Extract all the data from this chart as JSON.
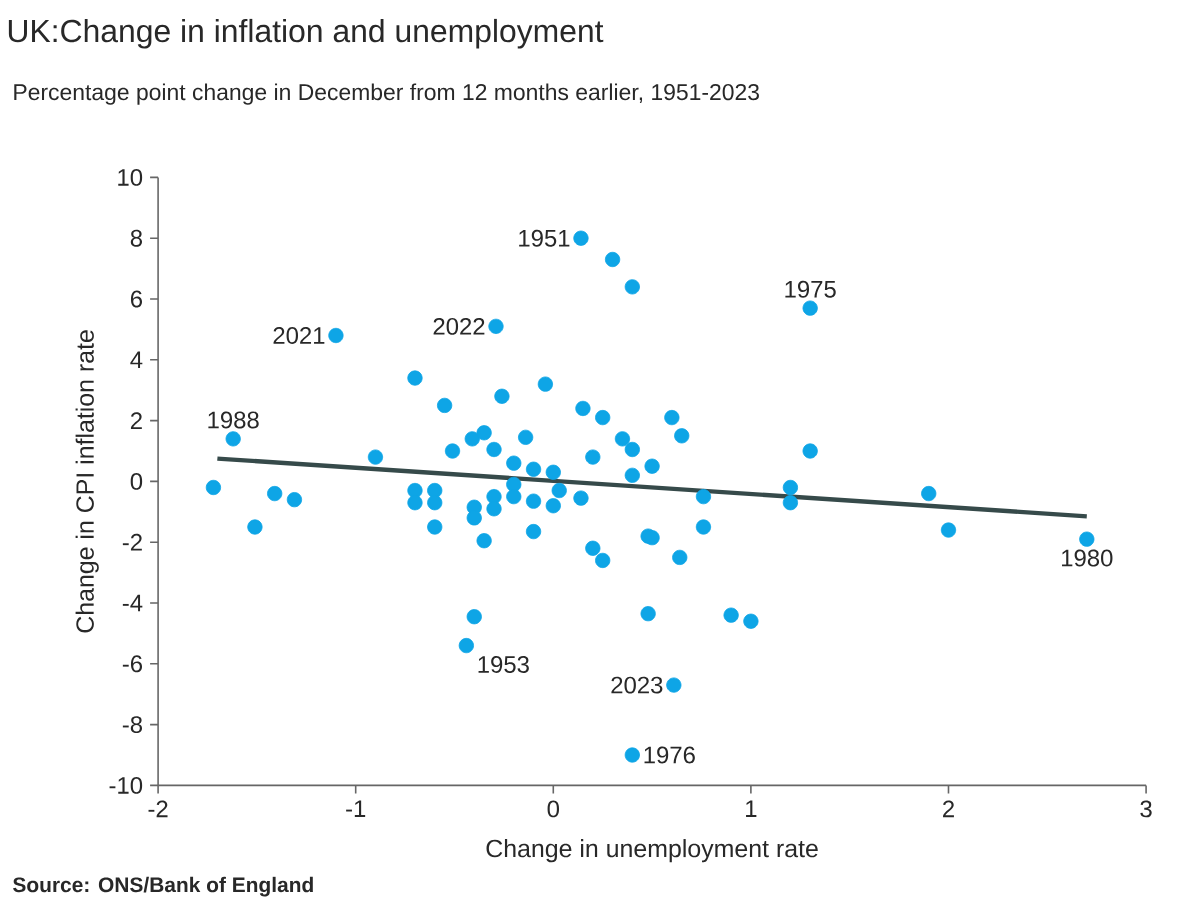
{
  "chart_data": {
    "type": "scatter",
    "title": "UK:Change in inflation and unemployment",
    "subtitle": "Percentage  point change in December from 12 months earlier, 1951-2023",
    "xlabel": "Change in unemployment rate",
    "ylabel": "Change in CPI inflation rate",
    "xlim": [
      -2,
      3
    ],
    "xticks": [
      -2,
      -1,
      0,
      1,
      2,
      3
    ],
    "ylim": [
      -10,
      10
    ],
    "yticks": [
      -10,
      -8,
      -6,
      -4,
      -2,
      0,
      2,
      4,
      6,
      8,
      10
    ],
    "series": [
      {
        "type": "scatter",
        "color": "#0ea5e6",
        "marker": "circle",
        "x": [
          -1.72,
          -1.62,
          -1.51,
          -1.41,
          -1.31,
          -1.1,
          -0.9,
          -0.7,
          -0.7,
          -0.7,
          -0.6,
          -0.6,
          -0.6,
          -0.55,
          -0.51,
          -0.44,
          -0.41,
          -0.4,
          -0.4,
          -0.4,
          -0.35,
          -0.35,
          -0.3,
          -0.3,
          -0.3,
          -0.29,
          -0.26,
          -0.2,
          -0.2,
          -0.2,
          -0.14,
          -0.1,
          -0.1,
          -0.1,
          -0.04,
          0,
          0,
          0.03,
          0.14,
          0.14,
          0.15,
          0.2,
          0.2,
          0.25,
          0.25,
          0.3,
          0.35,
          0.4,
          0.4,
          0.4,
          0.4,
          0.48,
          0.48,
          0.5,
          0.5,
          0.6,
          0.61,
          0.64,
          0.65,
          0.76,
          0.76,
          0.9,
          1.0,
          1.2,
          1.2,
          1.3,
          1.3,
          1.9,
          2.0,
          2.7
        ],
        "values": [
          -0.2,
          1.4,
          -1.5,
          -0.4,
          -0.6,
          4.8,
          0.8,
          3.4,
          -0.3,
          -0.7,
          -0.3,
          -0.7,
          -1.5,
          2.5,
          1.0,
          -5.4,
          1.4,
          -0.85,
          -1.2,
          -4.45,
          1.6,
          -1.95,
          1.05,
          -0.5,
          -0.9,
          5.1,
          2.8,
          0.6,
          -0.1,
          -0.5,
          1.45,
          0.4,
          -0.65,
          -1.65,
          3.2,
          0.3,
          -0.8,
          -0.3,
          8.0,
          -0.55,
          2.4,
          0.8,
          -2.2,
          2.1,
          -2.6,
          7.3,
          1.4,
          6.4,
          1.05,
          0.2,
          -9.0,
          -1.8,
          -4.35,
          0.5,
          -1.85,
          2.1,
          -6.7,
          -2.5,
          1.5,
          -0.5,
          -1.5,
          -4.4,
          -4.6,
          -0.2,
          -0.7,
          5.7,
          1.0,
          -0.4,
          -1.6,
          -1.9
        ]
      },
      {
        "type": "line",
        "color": "#364a4a",
        "marker": "none",
        "x": [
          -1.7,
          2.7
        ],
        "values": [
          0.75,
          -1.15
        ]
      }
    ],
    "annotations": [
      {
        "text": "1951",
        "x": 0.14,
        "y": 8.0
      },
      {
        "text": "1975",
        "x": 1.3,
        "y": 5.7
      },
      {
        "text": "2021",
        "x": -1.1,
        "y": 4.8
      },
      {
        "text": "2022",
        "x": -0.29,
        "y": 5.1
      },
      {
        "text": "1988",
        "x": -1.62,
        "y": 1.4
      },
      {
        "text": "1953",
        "x": -0.44,
        "y": -5.4
      },
      {
        "text": "2023",
        "x": 0.61,
        "y": -6.7
      },
      {
        "text": "1976",
        "x": 0.4,
        "y": -9.0
      },
      {
        "text": "1980",
        "x": 2.7,
        "y": -1.9
      },
      "Source: ONS/Bank of England"
    ]
  }
}
